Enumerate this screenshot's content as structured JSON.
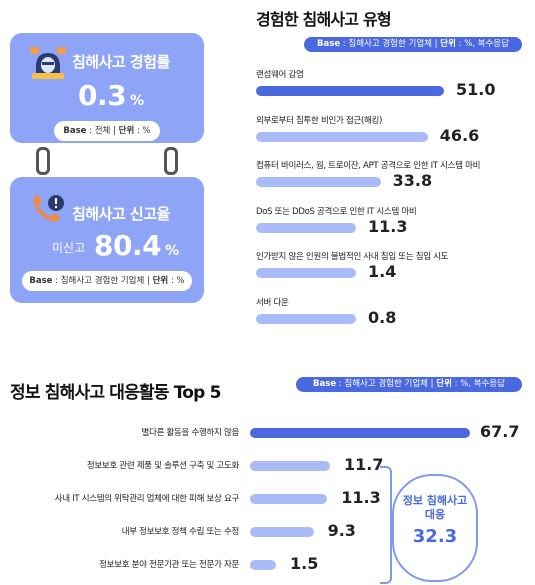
{
  "card1": {
    "title": "침해사고 경험률",
    "value": "0.3",
    "unit": "%",
    "base_label": "Base",
    "base_value": "전체",
    "unit_label": "단위",
    "unit_value": "%"
  },
  "card2": {
    "title": "침해사고 신고율",
    "prefix": "미신고",
    "value": "80.4",
    "unit": "%",
    "base_label": "Base",
    "base_value": "침해사고 경험한 기업체",
    "unit_label": "단위",
    "unit_value": "%"
  },
  "colors": {
    "primary": "#4a68e0",
    "light": "#a9bcf7",
    "card": "#8ea4f6"
  },
  "icons": [
    "hacker-icon",
    "phone-alert-icon"
  ],
  "chart_data": [
    {
      "type": "bar",
      "orientation": "horizontal",
      "title": "경험한 침해사고 유형",
      "base_label": "Base",
      "base_value": "침해사고 경험한 기업체",
      "unit_label": "단위",
      "unit_value": "%, 복수응답",
      "categories": [
        "랜섬웨어 감염",
        "외부로부터 침투한 비인가 접근(해킹)",
        "컴퓨터 바이러스, 웜, 트로이잔, APT 공격으로 인한 IT 시스템 마비",
        "DoS 또는 DDoS 공격으로 인한 IT 시스템 마비",
        "인가받지 않은 인원의 불법적인 사내 침입 또는 침입 시도",
        "서버 다운"
      ],
      "values": [
        51.0,
        46.6,
        33.8,
        11.3,
        1.4,
        0.8
      ],
      "value_labels": [
        "51.0",
        "46.6",
        "33.8",
        "11.3",
        "1.4",
        "0.8"
      ]
    },
    {
      "type": "bar",
      "orientation": "horizontal",
      "title": "정보 침해사고 대응활동 Top 5",
      "base_label": "Base",
      "base_value": "침해사고 경험한 기업체",
      "unit_label": "단위",
      "unit_value": "%, 복수응답",
      "categories": [
        "별다른 활동을 수행하지 않음",
        "정보보호 관련 제품 및 솔루션 구축 및 고도화",
        "사내 IT 시스템의 위탁관리 업체에 대한 피해 보상 요구",
        "내부 정보보호 정책 수립 또는 수정",
        "정보보호 분야 전문기관 또는 전문가 자문"
      ],
      "values": [
        67.7,
        11.7,
        11.3,
        9.3,
        1.5
      ],
      "value_labels": [
        "67.7",
        "11.7",
        "11.3",
        "9.3",
        "1.5"
      ],
      "summary_label_1": "정보 침해사고",
      "summary_label_2": "대응",
      "summary_value": "32.3"
    }
  ]
}
